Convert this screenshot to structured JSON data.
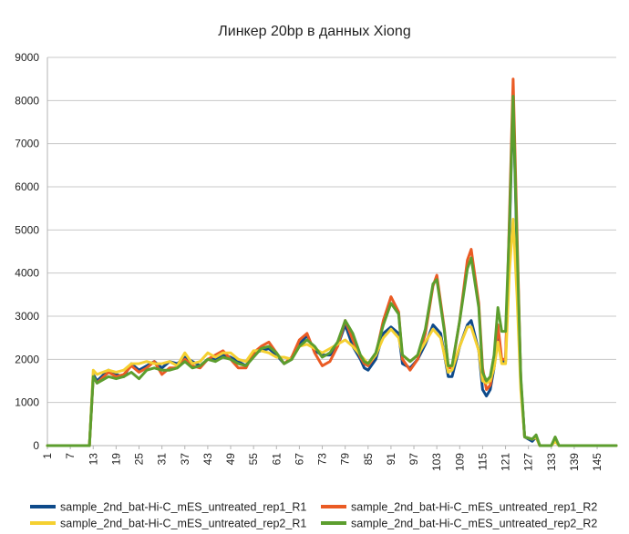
{
  "chart_data": {
    "type": "line",
    "title": "Линкер 20bp в данных Xiong",
    "xlabel": "",
    "ylabel": "",
    "ylim": [
      0,
      9000
    ],
    "yticks": [
      0,
      1000,
      2000,
      3000,
      4000,
      5000,
      6000,
      7000,
      8000,
      9000
    ],
    "xlim": [
      1,
      150
    ],
    "xticks": [
      1,
      7,
      13,
      19,
      25,
      31,
      37,
      43,
      49,
      55,
      61,
      67,
      73,
      79,
      85,
      91,
      97,
      103,
      109,
      115,
      121,
      127,
      133,
      139,
      145
    ],
    "grid": "horizontal",
    "legend_position": "bottom",
    "series": [
      {
        "name": "sample_2nd_bat-Hi-C_mES_untreated_rep1_R1",
        "color": "#0e4a8a",
        "points": [
          [
            1,
            0
          ],
          [
            10,
            0
          ],
          [
            12,
            0
          ],
          [
            13,
            1650
          ],
          [
            14,
            1500
          ],
          [
            17,
            1750
          ],
          [
            19,
            1650
          ],
          [
            21,
            1600
          ],
          [
            23,
            1900
          ],
          [
            25,
            1750
          ],
          [
            27,
            1850
          ],
          [
            29,
            1950
          ],
          [
            31,
            1800
          ],
          [
            33,
            1950
          ],
          [
            35,
            1900
          ],
          [
            37,
            2050
          ],
          [
            39,
            1950
          ],
          [
            41,
            1850
          ],
          [
            43,
            2000
          ],
          [
            45,
            2000
          ],
          [
            47,
            2100
          ],
          [
            49,
            2050
          ],
          [
            51,
            1950
          ],
          [
            53,
            1850
          ],
          [
            55,
            2150
          ],
          [
            57,
            2200
          ],
          [
            59,
            2250
          ],
          [
            61,
            2100
          ],
          [
            63,
            1900
          ],
          [
            65,
            2000
          ],
          [
            67,
            2350
          ],
          [
            69,
            2550
          ],
          [
            71,
            2200
          ],
          [
            73,
            2100
          ],
          [
            75,
            2100
          ],
          [
            77,
            2300
          ],
          [
            79,
            2800
          ],
          [
            81,
            2300
          ],
          [
            83,
            2000
          ],
          [
            84,
            1800
          ],
          [
            85,
            1750
          ],
          [
            87,
            2000
          ],
          [
            89,
            2600
          ],
          [
            91,
            2750
          ],
          [
            93,
            2600
          ],
          [
            94,
            1900
          ],
          [
            96,
            1800
          ],
          [
            98,
            2000
          ],
          [
            100,
            2350
          ],
          [
            102,
            2800
          ],
          [
            104,
            2600
          ],
          [
            106,
            1600
          ],
          [
            107,
            1600
          ],
          [
            109,
            2300
          ],
          [
            111,
            2800
          ],
          [
            112,
            2900
          ],
          [
            114,
            2200
          ],
          [
            115,
            1300
          ],
          [
            116,
            1150
          ],
          [
            117,
            1300
          ],
          [
            118,
            1800
          ],
          [
            119,
            2500
          ],
          [
            120,
            1950
          ],
          [
            121,
            1950
          ],
          [
            122,
            4800
          ],
          [
            123,
            8100
          ],
          [
            124,
            4500
          ],
          [
            125,
            1500
          ],
          [
            126,
            200
          ],
          [
            128,
            100
          ],
          [
            129,
            200
          ],
          [
            130,
            0
          ],
          [
            133,
            0
          ],
          [
            134,
            150
          ],
          [
            135,
            0
          ],
          [
            140,
            0
          ],
          [
            150,
            0
          ]
        ]
      },
      {
        "name": "sample_2nd_bat-Hi-C_mES_untreated_rep1_R2",
        "color": "#ea5b24",
        "points": [
          [
            1,
            0
          ],
          [
            10,
            0
          ],
          [
            12,
            0
          ],
          [
            13,
            1600
          ],
          [
            14,
            1450
          ],
          [
            17,
            1700
          ],
          [
            19,
            1600
          ],
          [
            21,
            1650
          ],
          [
            23,
            1850
          ],
          [
            25,
            1700
          ],
          [
            27,
            1800
          ],
          [
            29,
            1950
          ],
          [
            31,
            1650
          ],
          [
            33,
            1800
          ],
          [
            35,
            1800
          ],
          [
            37,
            2000
          ],
          [
            39,
            1850
          ],
          [
            41,
            1800
          ],
          [
            43,
            2000
          ],
          [
            45,
            2100
          ],
          [
            47,
            2200
          ],
          [
            49,
            2000
          ],
          [
            51,
            1800
          ],
          [
            53,
            1800
          ],
          [
            55,
            2150
          ],
          [
            57,
            2300
          ],
          [
            59,
            2400
          ],
          [
            61,
            2150
          ],
          [
            63,
            1900
          ],
          [
            65,
            2050
          ],
          [
            67,
            2450
          ],
          [
            69,
            2600
          ],
          [
            71,
            2150
          ],
          [
            73,
            1850
          ],
          [
            75,
            1950
          ],
          [
            77,
            2300
          ],
          [
            79,
            2900
          ],
          [
            81,
            2450
          ],
          [
            83,
            2050
          ],
          [
            84,
            1900
          ],
          [
            85,
            1850
          ],
          [
            87,
            2100
          ],
          [
            89,
            2900
          ],
          [
            91,
            3450
          ],
          [
            93,
            3100
          ],
          [
            94,
            2000
          ],
          [
            96,
            1750
          ],
          [
            98,
            2000
          ],
          [
            100,
            2600
          ],
          [
            102,
            3700
          ],
          [
            103,
            3950
          ],
          [
            105,
            2700
          ],
          [
            106,
            1800
          ],
          [
            107,
            1800
          ],
          [
            109,
            2900
          ],
          [
            111,
            4300
          ],
          [
            112,
            4550
          ],
          [
            114,
            3300
          ],
          [
            115,
            1800
          ],
          [
            116,
            1300
          ],
          [
            117,
            1400
          ],
          [
            118,
            1900
          ],
          [
            119,
            2800
          ],
          [
            120,
            2000
          ],
          [
            121,
            2000
          ],
          [
            122,
            5200
          ],
          [
            123,
            8500
          ],
          [
            124,
            5000
          ],
          [
            125,
            1500
          ],
          [
            126,
            200
          ],
          [
            128,
            150
          ],
          [
            129,
            200
          ],
          [
            130,
            0
          ],
          [
            133,
            0
          ],
          [
            134,
            150
          ],
          [
            135,
            0
          ],
          [
            140,
            0
          ],
          [
            150,
            0
          ]
        ]
      },
      {
        "name": "sample_2nd_bat-Hi-C_mES_untreated_rep2_R1",
        "color": "#f5d031",
        "points": [
          [
            1,
            0
          ],
          [
            10,
            0
          ],
          [
            12,
            0
          ],
          [
            13,
            1750
          ],
          [
            14,
            1650
          ],
          [
            17,
            1750
          ],
          [
            19,
            1700
          ],
          [
            21,
            1750
          ],
          [
            23,
            1900
          ],
          [
            25,
            1900
          ],
          [
            27,
            1950
          ],
          [
            29,
            1900
          ],
          [
            31,
            1900
          ],
          [
            33,
            1950
          ],
          [
            35,
            1850
          ],
          [
            37,
            2150
          ],
          [
            39,
            1900
          ],
          [
            41,
            1950
          ],
          [
            43,
            2150
          ],
          [
            45,
            2050
          ],
          [
            47,
            2150
          ],
          [
            49,
            2150
          ],
          [
            51,
            2000
          ],
          [
            53,
            1950
          ],
          [
            55,
            2200
          ],
          [
            57,
            2200
          ],
          [
            59,
            2150
          ],
          [
            61,
            2050
          ],
          [
            63,
            2050
          ],
          [
            65,
            2000
          ],
          [
            67,
            2300
          ],
          [
            69,
            2350
          ],
          [
            71,
            2250
          ],
          [
            73,
            2150
          ],
          [
            75,
            2250
          ],
          [
            77,
            2350
          ],
          [
            79,
            2450
          ],
          [
            81,
            2300
          ],
          [
            83,
            2100
          ],
          [
            84,
            2000
          ],
          [
            85,
            1900
          ],
          [
            87,
            2100
          ],
          [
            89,
            2500
          ],
          [
            91,
            2700
          ],
          [
            93,
            2500
          ],
          [
            94,
            2100
          ],
          [
            96,
            1950
          ],
          [
            98,
            2100
          ],
          [
            100,
            2400
          ],
          [
            102,
            2700
          ],
          [
            104,
            2500
          ],
          [
            106,
            1700
          ],
          [
            107,
            1750
          ],
          [
            109,
            2300
          ],
          [
            111,
            2750
          ],
          [
            112,
            2750
          ],
          [
            114,
            2200
          ],
          [
            115,
            1500
          ],
          [
            116,
            1450
          ],
          [
            117,
            1500
          ],
          [
            118,
            1800
          ],
          [
            119,
            2400
          ],
          [
            120,
            1900
          ],
          [
            121,
            1900
          ],
          [
            122,
            4000
          ],
          [
            123,
            5250
          ],
          [
            124,
            3500
          ],
          [
            125,
            1300
          ],
          [
            126,
            200
          ],
          [
            128,
            150
          ],
          [
            129,
            200
          ],
          [
            130,
            0
          ],
          [
            133,
            0
          ],
          [
            134,
            100
          ],
          [
            135,
            0
          ],
          [
            140,
            0
          ],
          [
            150,
            0
          ]
        ]
      },
      {
        "name": "sample_2nd_bat-Hi-C_mES_untreated_rep2_R2",
        "color": "#5c9e2e",
        "points": [
          [
            1,
            0
          ],
          [
            10,
            0
          ],
          [
            12,
            0
          ],
          [
            13,
            1600
          ],
          [
            14,
            1450
          ],
          [
            17,
            1600
          ],
          [
            19,
            1550
          ],
          [
            21,
            1600
          ],
          [
            23,
            1700
          ],
          [
            25,
            1550
          ],
          [
            27,
            1750
          ],
          [
            29,
            1800
          ],
          [
            31,
            1750
          ],
          [
            33,
            1750
          ],
          [
            35,
            1800
          ],
          [
            37,
            1950
          ],
          [
            39,
            1800
          ],
          [
            41,
            1850
          ],
          [
            43,
            2000
          ],
          [
            45,
            1950
          ],
          [
            47,
            2050
          ],
          [
            49,
            2000
          ],
          [
            51,
            1900
          ],
          [
            53,
            1850
          ],
          [
            55,
            2050
          ],
          [
            57,
            2250
          ],
          [
            59,
            2300
          ],
          [
            61,
            2150
          ],
          [
            63,
            1900
          ],
          [
            65,
            2000
          ],
          [
            67,
            2300
          ],
          [
            69,
            2450
          ],
          [
            71,
            2300
          ],
          [
            73,
            2050
          ],
          [
            75,
            2150
          ],
          [
            77,
            2400
          ],
          [
            79,
            2900
          ],
          [
            81,
            2600
          ],
          [
            83,
            2100
          ],
          [
            84,
            1950
          ],
          [
            85,
            1900
          ],
          [
            87,
            2150
          ],
          [
            89,
            2800
          ],
          [
            91,
            3300
          ],
          [
            93,
            3050
          ],
          [
            94,
            2100
          ],
          [
            96,
            1950
          ],
          [
            98,
            2100
          ],
          [
            100,
            2700
          ],
          [
            102,
            3750
          ],
          [
            103,
            3850
          ],
          [
            105,
            2650
          ],
          [
            106,
            1850
          ],
          [
            107,
            1850
          ],
          [
            109,
            2900
          ],
          [
            111,
            4100
          ],
          [
            112,
            4350
          ],
          [
            114,
            3200
          ],
          [
            115,
            1700
          ],
          [
            116,
            1500
          ],
          [
            117,
            1600
          ],
          [
            118,
            2100
          ],
          [
            119,
            3200
          ],
          [
            120,
            2650
          ],
          [
            121,
            2650
          ],
          [
            122,
            5000
          ],
          [
            123,
            8100
          ],
          [
            124,
            4700
          ],
          [
            125,
            1600
          ],
          [
            126,
            200
          ],
          [
            128,
            150
          ],
          [
            129,
            250
          ],
          [
            130,
            0
          ],
          [
            133,
            0
          ],
          [
            134,
            200
          ],
          [
            135,
            0
          ],
          [
            140,
            0
          ],
          [
            150,
            0
          ]
        ]
      }
    ]
  }
}
